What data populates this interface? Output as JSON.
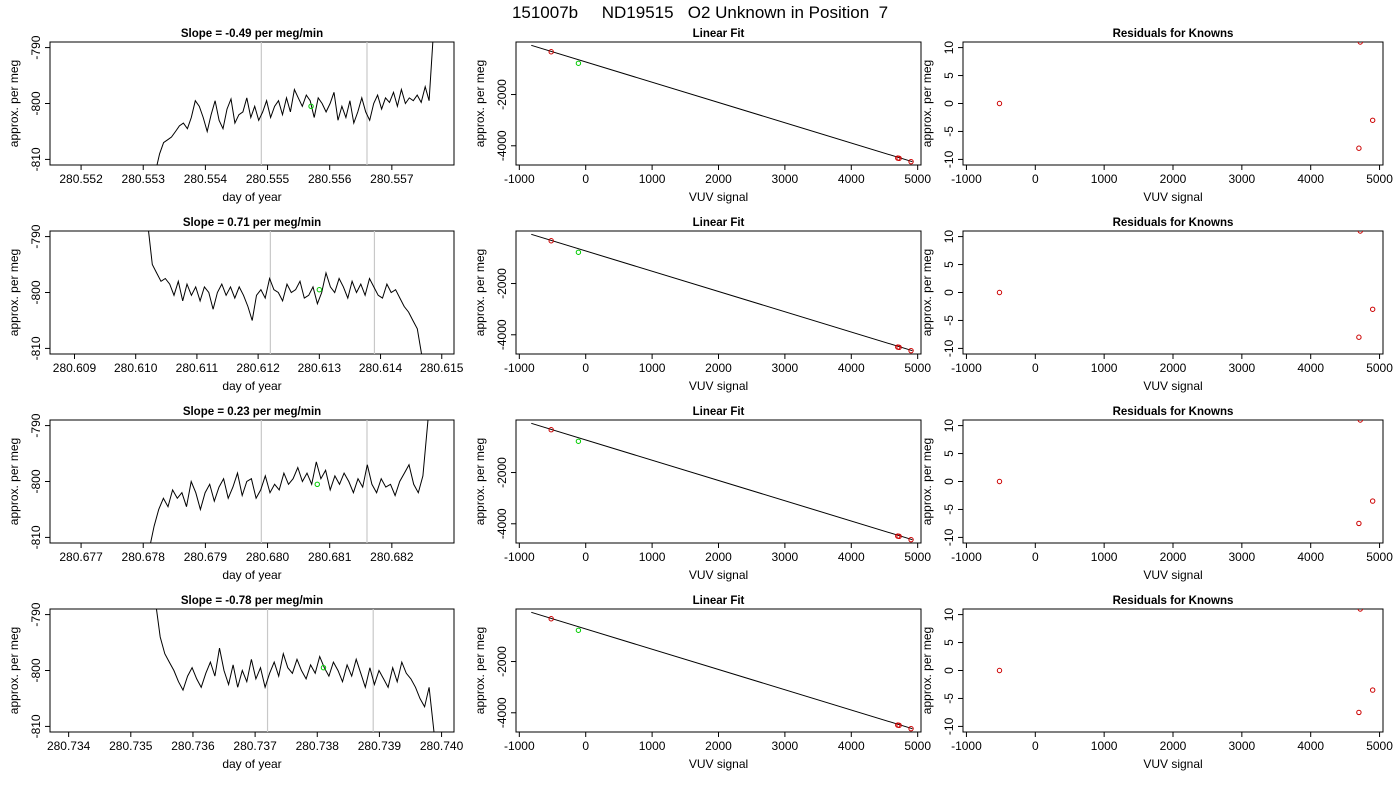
{
  "page": {
    "title": "151007b     ND19515   O2 Unknown in Position  7"
  },
  "colors": {
    "trace": "#000000",
    "marker_vline": "#c8c8c8",
    "known_point": "#cc0000",
    "unknown_point": "#00cc00",
    "fit_line": "#000000"
  },
  "labels": {
    "day_of_year": "day of year",
    "approx_per_meg": "approx. per meg",
    "vuv_signal": "VUV signal",
    "linear_fit": "Linear Fit",
    "residuals_for_knowns": "Residuals for Knowns"
  },
  "chart_data": [
    {
      "type": "line",
      "title": "Slope =  -0.49  per meg/min",
      "xlabel": "day of year",
      "ylabel": "approx. per meg",
      "xlim": [
        280.5515,
        280.558
      ],
      "ylim": [
        -811,
        -789
      ],
      "xticks": [
        280.552,
        280.553,
        280.554,
        280.555,
        280.556,
        280.557
      ],
      "xticklabels": [
        "280.552",
        "280.553",
        "280.554",
        "280.555",
        "280.556",
        "280.557"
      ],
      "yticks": [
        -810,
        -800,
        -790
      ],
      "yticklabels": [
        "-810",
        "-800",
        "-790"
      ],
      "vlines": [
        280.5549,
        280.5566
      ],
      "unknown_point": [
        280.5557,
        -800.5
      ],
      "x_start": 280.5532,
      "x_end": 280.5576,
      "trace": [
        -812,
        -809,
        -807,
        -806.5,
        -806,
        -805,
        -804,
        -803.5,
        -804.5,
        -802.5,
        -799.5,
        -800.5,
        -802.5,
        -805,
        -802,
        -799.5,
        -803,
        -804.5,
        -801,
        -799.2,
        -803.5,
        -802,
        -801.5,
        -799,
        -802.5,
        -800.5,
        -803,
        -801.5,
        -799.5,
        -802.5,
        -800.5,
        -799.5,
        -802,
        -799,
        -801.5,
        -797.5,
        -799,
        -800.5,
        -798.5,
        -799.5,
        -802.5,
        -799,
        -800,
        -801.5,
        -800,
        -798,
        -803,
        -800.5,
        -802.5,
        -799.5,
        -803.5,
        -801.5,
        -799,
        -801.5,
        -803,
        -800,
        -798.5,
        -801,
        -799,
        -799.8,
        -798,
        -800.5,
        -797.5,
        -800,
        -799,
        -799.5,
        -798.5,
        -799.8,
        -797,
        -799.5
      ],
      "tail_end": -786
    },
    {
      "type": "line",
      "title": "Linear Fit",
      "xlabel": "VUV signal",
      "ylabel": "approx. per meg",
      "xlim": [
        -1050,
        5050
      ],
      "ylim": [
        -4750,
        50
      ],
      "xticks": [
        -1000,
        0,
        1000,
        2000,
        3000,
        4000,
        5000
      ],
      "xticklabels": [
        "-1000",
        "0",
        "1000",
        "2000",
        "3000",
        "4000",
        "5000"
      ],
      "yticks": [
        -4000,
        -2000
      ],
      "yticklabels": [
        "-4000",
        "-2000"
      ],
      "fit_line": {
        "x": [
          -820,
          4920
        ],
        "y": [
          -80,
          -4620
        ]
      },
      "known_points": {
        "x": [
          -520,
          4700,
          4720,
          4900
        ],
        "y": [
          -330,
          -4480,
          -4490,
          -4620
        ]
      },
      "unknown_points": {
        "x": [
          -110
        ],
        "y": [
          -780
        ]
      }
    },
    {
      "type": "scatter",
      "title": "Residuals for Knowns",
      "xlabel": "VUV signal",
      "ylabel": "approx. per meg",
      "xlim": [
        -1050,
        5050
      ],
      "ylim": [
        -11,
        11
      ],
      "xticks": [
        -1000,
        0,
        1000,
        2000,
        3000,
        4000,
        5000
      ],
      "xticklabels": [
        "-1000",
        "0",
        "1000",
        "2000",
        "3000",
        "4000",
        "5000"
      ],
      "yticks": [
        -10,
        -5,
        0,
        5,
        10
      ],
      "yticklabels": [
        "-10",
        "-5",
        "0",
        "5",
        "10"
      ],
      "points": {
        "x": [
          -520,
          4700,
          4720,
          4900
        ],
        "y": [
          0,
          -8,
          11,
          -3
        ]
      }
    },
    {
      "type": "line",
      "title": "Slope =  0.71  per meg/min",
      "xlabel": "day of year",
      "ylabel": "approx. per meg",
      "xlim": [
        280.6086,
        280.6152
      ],
      "ylim": [
        -811,
        -789
      ],
      "xticks": [
        280.609,
        280.61,
        280.611,
        280.612,
        280.613,
        280.614,
        280.615
      ],
      "xticklabels": [
        "280.609",
        "280.610",
        "280.611",
        "280.612",
        "280.613",
        "280.614",
        "280.615"
      ],
      "yticks": [
        -810,
        -800,
        -790
      ],
      "yticklabels": [
        "-810",
        "-800",
        "-790"
      ],
      "vlines": [
        280.6122,
        280.6139
      ],
      "unknown_point": [
        280.613,
        -799.5
      ],
      "x_start": 280.6102,
      "x_end": 280.6146,
      "trace": [
        -788,
        -795,
        -796.5,
        -798,
        -797.5,
        -798.5,
        -800.5,
        -798,
        -801.5,
        -798.5,
        -800.5,
        -799,
        -801.5,
        -799,
        -800,
        -803,
        -800,
        -798.5,
        -800.5,
        -799,
        -801,
        -799,
        -800.5,
        -802.5,
        -805,
        -800.5,
        -799.5,
        -801,
        -797.5,
        -799.5,
        -800,
        -801.5,
        -798.5,
        -800,
        -799.5,
        -798,
        -801,
        -800.5,
        -799,
        -802,
        -800,
        -796.5,
        -799,
        -800,
        -797.5,
        -799,
        -801,
        -798,
        -800,
        -798.5,
        -800.5,
        -797.5,
        -799,
        -800.5,
        -801,
        -798.5,
        -800,
        -799.5,
        -801,
        -802.5,
        -803.5,
        -805,
        -806.5
      ],
      "tail_end": -812
    },
    {
      "type": "line",
      "title": "Linear Fit",
      "xlabel": "VUV signal",
      "ylabel": "approx. per meg",
      "xlim": [
        -1050,
        5050
      ],
      "ylim": [
        -4750,
        50
      ],
      "xticks": [
        -1000,
        0,
        1000,
        2000,
        3000,
        4000,
        5000
      ],
      "xticklabels": [
        "-1000",
        "0",
        "1000",
        "2000",
        "3000",
        "4000",
        "5000"
      ],
      "yticks": [
        -4000,
        -2000
      ],
      "yticklabels": [
        "-4000",
        "-2000"
      ],
      "fit_line": {
        "x": [
          -820,
          4920
        ],
        "y": [
          -80,
          -4620
        ]
      },
      "known_points": {
        "x": [
          -520,
          4700,
          4720,
          4900
        ],
        "y": [
          -330,
          -4480,
          -4490,
          -4620
        ]
      },
      "unknown_points": {
        "x": [
          -110
        ],
        "y": [
          -780
        ]
      }
    },
    {
      "type": "scatter",
      "title": "Residuals for Knowns",
      "xlabel": "VUV signal",
      "ylabel": "approx. per meg",
      "xlim": [
        -1050,
        5050
      ],
      "ylim": [
        -11,
        11
      ],
      "xticks": [
        -1000,
        0,
        1000,
        2000,
        3000,
        4000,
        5000
      ],
      "xticklabels": [
        "-1000",
        "0",
        "1000",
        "2000",
        "3000",
        "4000",
        "5000"
      ],
      "yticks": [
        -10,
        -5,
        0,
        5,
        10
      ],
      "yticklabels": [
        "-10",
        "-5",
        "0",
        "5",
        "10"
      ],
      "points": {
        "x": [
          -520,
          4700,
          4720,
          4900
        ],
        "y": [
          0,
          -8,
          11,
          -3
        ]
      }
    },
    {
      "type": "line",
      "title": "Slope =  0.23  per meg/min",
      "xlabel": "day of year",
      "ylabel": "approx. per meg",
      "xlim": [
        280.6765,
        280.683
      ],
      "ylim": [
        -811,
        -789
      ],
      "xticks": [
        280.677,
        280.678,
        280.679,
        280.68,
        280.681,
        280.682
      ],
      "xticklabels": [
        "280.677",
        "280.678",
        "280.679",
        "280.680",
        "280.681",
        "280.682"
      ],
      "yticks": [
        -810,
        -800,
        -790
      ],
      "yticklabels": [
        "-810",
        "-800",
        "-790"
      ],
      "vlines": [
        280.6799,
        280.6816
      ],
      "unknown_point": [
        280.6808,
        -800.5
      ],
      "x_start": 280.6781,
      "x_end": 280.6825,
      "trace": [
        -812,
        -808,
        -805,
        -803,
        -804.5,
        -801.5,
        -803,
        -802,
        -804.5,
        -800,
        -802,
        -805,
        -802,
        -800.5,
        -803.5,
        -801,
        -799.5,
        -803,
        -801,
        -798.5,
        -802.5,
        -800,
        -799.5,
        -803,
        -801.5,
        -799,
        -802,
        -800.5,
        -801.5,
        -798.5,
        -800.5,
        -799.5,
        -797.5,
        -800,
        -798.5,
        -800.5,
        -796.5,
        -799.5,
        -798,
        -801.5,
        -799,
        -800.5,
        -798.5,
        -800,
        -802,
        -799.5,
        -801,
        -797,
        -800.5,
        -802,
        -799.5,
        -801,
        -800.5,
        -802.5,
        -800,
        -798.5,
        -797,
        -800.5,
        -802,
        -799
      ],
      "tail_end": -788
    },
    {
      "type": "line",
      "title": "Linear Fit",
      "xlabel": "VUV signal",
      "ylabel": "approx. per meg",
      "xlim": [
        -1050,
        5050
      ],
      "ylim": [
        -4750,
        50
      ],
      "xticks": [
        -1000,
        0,
        1000,
        2000,
        3000,
        4000,
        5000
      ],
      "xticklabels": [
        "-1000",
        "0",
        "1000",
        "2000",
        "3000",
        "4000",
        "5000"
      ],
      "yticks": [
        -4000,
        -2000
      ],
      "yticklabels": [
        "-4000",
        "-2000"
      ],
      "fit_line": {
        "x": [
          -820,
          4920
        ],
        "y": [
          -80,
          -4620
        ]
      },
      "known_points": {
        "x": [
          -520,
          4700,
          4720,
          4900
        ],
        "y": [
          -330,
          -4480,
          -4490,
          -4620
        ]
      },
      "unknown_points": {
        "x": [
          -110
        ],
        "y": [
          -780
        ]
      }
    },
    {
      "type": "scatter",
      "title": "Residuals for Knowns",
      "xlabel": "VUV signal",
      "ylabel": "approx. per meg",
      "xlim": [
        -1050,
        5050
      ],
      "ylim": [
        -11,
        11
      ],
      "xticks": [
        -1000,
        0,
        1000,
        2000,
        3000,
        4000,
        5000
      ],
      "xticklabels": [
        "-1000",
        "0",
        "1000",
        "2000",
        "3000",
        "4000",
        "5000"
      ],
      "yticks": [
        -10,
        -5,
        0,
        5,
        10
      ],
      "yticklabels": [
        "-10",
        "-5",
        "0",
        "5",
        "10"
      ],
      "points": {
        "x": [
          -520,
          4700,
          4720,
          4900
        ],
        "y": [
          0,
          -7.5,
          11,
          -3.5
        ]
      }
    },
    {
      "type": "line",
      "title": "Slope =  -0.78  per meg/min",
      "xlabel": "day of year",
      "ylabel": "approx. per meg",
      "xlim": [
        280.7337,
        280.7402
      ],
      "ylim": [
        -811,
        -789
      ],
      "xticks": [
        280.734,
        280.735,
        280.736,
        280.737,
        280.738,
        280.739,
        280.74
      ],
      "xticklabels": [
        "280.734",
        "280.735",
        "280.736",
        "280.737",
        "280.738",
        "280.739",
        "280.740"
      ],
      "yticks": [
        -810,
        -800,
        -790
      ],
      "yticklabels": [
        "-810",
        "-800",
        "-790"
      ],
      "vlines": [
        280.7372,
        280.7389
      ],
      "unknown_point": [
        280.7381,
        -799.5
      ],
      "x_start": 280.7354,
      "x_end": 280.7398,
      "trace": [
        -788,
        -794,
        -797,
        -798.5,
        -800,
        -802,
        -803.5,
        -801,
        -799.5,
        -801.5,
        -803,
        -800.5,
        -798.5,
        -801,
        -796,
        -800,
        -802.5,
        -799,
        -803,
        -800,
        -802,
        -798,
        -801.5,
        -799.5,
        -803,
        -800.5,
        -798.5,
        -801,
        -797,
        -799.5,
        -800.5,
        -798,
        -800,
        -801.5,
        -799,
        -800.5,
        -797.5,
        -799.5,
        -801,
        -798.5,
        -800,
        -802,
        -799,
        -801,
        -798,
        -800.5,
        -803,
        -799.5,
        -802.5,
        -800,
        -801.5,
        -803,
        -799.5,
        -802,
        -798.5,
        -800.5,
        -801.5,
        -803,
        -805,
        -806.5,
        -803
      ],
      "tail_end": -812
    },
    {
      "type": "line",
      "title": "Linear Fit",
      "xlabel": "VUV signal",
      "ylabel": "approx. per meg",
      "xlim": [
        -1050,
        5050
      ],
      "ylim": [
        -4750,
        50
      ],
      "xticks": [
        -1000,
        0,
        1000,
        2000,
        3000,
        4000,
        5000
      ],
      "xticklabels": [
        "-1000",
        "0",
        "1000",
        "2000",
        "3000",
        "4000",
        "5000"
      ],
      "yticks": [
        -4000,
        -2000
      ],
      "yticklabels": [
        "-4000",
        "-2000"
      ],
      "fit_line": {
        "x": [
          -820,
          4920
        ],
        "y": [
          -80,
          -4620
        ]
      },
      "known_points": {
        "x": [
          -520,
          4700,
          4720,
          4900
        ],
        "y": [
          -330,
          -4480,
          -4490,
          -4620
        ]
      },
      "unknown_points": {
        "x": [
          -110
        ],
        "y": [
          -780
        ]
      }
    },
    {
      "type": "scatter",
      "title": "Residuals for Knowns",
      "xlabel": "VUV signal",
      "ylabel": "approx. per meg",
      "xlim": [
        -1050,
        5050
      ],
      "ylim": [
        -11,
        11
      ],
      "xticks": [
        -1000,
        0,
        1000,
        2000,
        3000,
        4000,
        5000
      ],
      "xticklabels": [
        "-1000",
        "0",
        "1000",
        "2000",
        "3000",
        "4000",
        "5000"
      ],
      "yticks": [
        -10,
        -5,
        0,
        5,
        10
      ],
      "yticklabels": [
        "-10",
        "-5",
        "0",
        "5",
        "10"
      ],
      "points": {
        "x": [
          -520,
          4700,
          4720,
          4900
        ],
        "y": [
          0,
          -7.5,
          11,
          -3.5
        ]
      }
    }
  ]
}
